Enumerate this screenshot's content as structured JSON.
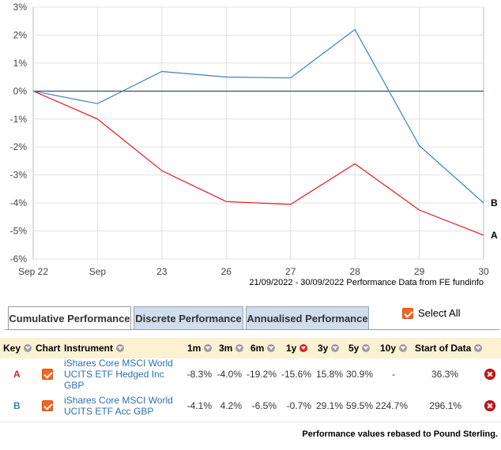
{
  "chart_data": {
    "type": "line",
    "x": [
      "Sep 22",
      "Sep",
      "23",
      "26",
      "27",
      "28",
      "29",
      "30"
    ],
    "ylim": [
      -6,
      3
    ],
    "yticks": [
      "3%",
      "2%",
      "1%",
      "0%",
      "-1%",
      "-2%",
      "-3%",
      "-4%",
      "-5%",
      "-6%"
    ],
    "grid": true,
    "series": [
      {
        "name": "A",
        "color": "#e8191f",
        "values": [
          0,
          -1.0,
          -2.85,
          -3.95,
          -4.05,
          -2.6,
          -4.25,
          -5.15
        ]
      },
      {
        "name": "B",
        "color": "#3d7fc1",
        "values": [
          0,
          -0.45,
          0.7,
          0.5,
          0.47,
          2.2,
          -1.95,
          -4.0
        ]
      }
    ],
    "end_labels": [
      "A",
      "B"
    ]
  },
  "attribution": "21/09/2022 - 30/09/2022 Performance Data from FE fundinfo",
  "tabs": {
    "cumulative": "Cumulative Performance",
    "discrete": "Discrete Performance",
    "annualised": "Annualised Performance"
  },
  "select_all": "Select All",
  "table": {
    "headers": {
      "key": "Key",
      "chart": "Chart",
      "instrument": "Instrument",
      "m1": "1m",
      "m3": "3m",
      "m6": "6m",
      "y1": "1y",
      "y3": "3y",
      "y5": "5y",
      "y10": "10y",
      "start": "Start of Data"
    },
    "rows": [
      {
        "key": "A",
        "instrument": "iShares Core MSCI World UCITS ETF Hedged Inc GBP",
        "m1": "-8.3%",
        "m3": "-4.0%",
        "m6": "-19.2%",
        "y1": "-15.6%",
        "y3": "15.8%",
        "y5": "30.9%",
        "y10": "-",
        "start": "36.3%"
      },
      {
        "key": "B",
        "instrument": "iShares Core MSCI World UCITS ETF Acc GBP",
        "m1": "-4.1%",
        "m3": "4.2%",
        "m6": "-6.5%",
        "y1": "-0.7%",
        "y3": "29.1%",
        "y5": "59.5%",
        "y10": "224.7%",
        "start": "296.1%"
      }
    ]
  },
  "footnote": "Performance values rebased to Pound Sterling."
}
